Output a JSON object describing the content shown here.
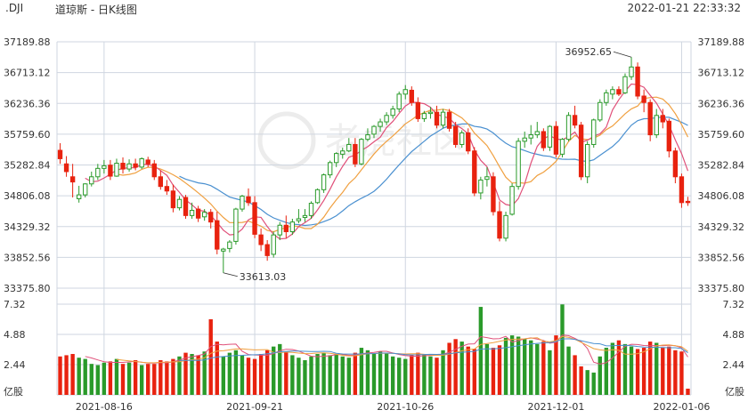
{
  "header": {
    "symbol": ".DJI",
    "title": "道琼斯 - 日K线图",
    "timestamp": "2022-01-21 22:33:32"
  },
  "watermark": {
    "text": "老虎社区",
    "icon": "tiger-logo-icon"
  },
  "colors": {
    "up": "#2a9a2a",
    "down": "#e8220f",
    "grid": "#cfd6e0",
    "ma5": "#e0507a",
    "ma10": "#f0a040",
    "ma20": "#4a90d0"
  },
  "chart_data": [
    {
      "type": "candlestick",
      "title": "",
      "y_ticks": [
        "37189.88",
        "36713.12",
        "36236.36",
        "35759.60",
        "35282.84",
        "34806.08",
        "34329.32",
        "33852.56",
        "33375.80"
      ],
      "ylim": [
        33375.8,
        37189.88
      ],
      "x_tick_labels": [
        "2021-08-16",
        "2021-09-21",
        "2021-10-26",
        "2021-12-01",
        "2022-01-06"
      ],
      "annotations": [
        {
          "text": "36952.65",
          "value": 36952.65,
          "kind": "high"
        },
        {
          "text": "33613.03",
          "value": 33613.03,
          "kind": "low"
        }
      ],
      "candles": [
        [
          35510,
          35620,
          35380,
          35300
        ],
        [
          35300,
          35420,
          35180,
          35100
        ],
        [
          35100,
          35300,
          35020,
          34780
        ],
        [
          34760,
          34960,
          34820,
          34700
        ],
        [
          34820,
          35000,
          34990,
          34780
        ],
        [
          34990,
          35180,
          35100,
          34950
        ],
        [
          35100,
          35300,
          35230,
          35050
        ],
        [
          35230,
          35360,
          35270,
          35150
        ],
        [
          35280,
          35360,
          35110,
          35050
        ],
        [
          35110,
          35380,
          35310,
          35100
        ],
        [
          35310,
          35400,
          35220,
          35150
        ],
        [
          35220,
          35370,
          35300,
          35180
        ],
        [
          35300,
          35380,
          35250,
          35200
        ],
        [
          35250,
          35400,
          35380,
          35220
        ],
        [
          35360,
          35410,
          35300,
          35250
        ],
        [
          35300,
          35360,
          35100,
          35050
        ],
        [
          35100,
          35200,
          34950,
          34900
        ],
        [
          34950,
          35050,
          34880,
          34820
        ],
        [
          34880,
          34980,
          34620,
          34550
        ],
        [
          34620,
          34800,
          34750,
          34580
        ],
        [
          34780,
          34820,
          34500,
          34450
        ],
        [
          34500,
          34700,
          34580,
          34450
        ],
        [
          34600,
          34650,
          34460,
          34400
        ],
        [
          34480,
          34600,
          34550,
          34420
        ],
        [
          34550,
          34600,
          34400,
          34300
        ],
        [
          34420,
          34560,
          33980,
          33900
        ],
        [
          33950,
          34000,
          33980,
          33613.03
        ],
        [
          33990,
          34120,
          34090,
          33930
        ],
        [
          34100,
          34620,
          34600,
          34050
        ],
        [
          34600,
          34820,
          34800,
          34560
        ],
        [
          34790,
          34920,
          34700,
          34650
        ],
        [
          34700,
          34800,
          34210,
          34150
        ],
        [
          34200,
          34300,
          34050,
          33950
        ],
        [
          34050,
          34120,
          33880,
          33800
        ],
        [
          33900,
          34250,
          34200,
          33850
        ],
        [
          34200,
          34400,
          34350,
          34120
        ],
        [
          34350,
          34500,
          34250,
          34150
        ],
        [
          34250,
          34450,
          34400,
          34200
        ],
        [
          34420,
          34600,
          34450,
          34380
        ],
        [
          34470,
          34600,
          34500,
          34400
        ],
        [
          34500,
          34720,
          34690,
          34450
        ],
        [
          34700,
          34920,
          34900,
          34680
        ],
        [
          34900,
          35150,
          35130,
          34850
        ],
        [
          35130,
          35350,
          35320,
          35080
        ],
        [
          35320,
          35480,
          35460,
          35250
        ],
        [
          35450,
          35550,
          35500,
          35380
        ],
        [
          35500,
          35700,
          35600,
          35480
        ],
        [
          35600,
          35700,
          35300,
          35250
        ],
        [
          35300,
          35700,
          35680,
          35280
        ],
        [
          35680,
          35850,
          35750,
          35650
        ],
        [
          35760,
          35900,
          35880,
          35700
        ],
        [
          35880,
          36000,
          35950,
          35800
        ],
        [
          35950,
          36100,
          36050,
          35900
        ],
        [
          36050,
          36200,
          36150,
          36000
        ],
        [
          36150,
          36420,
          36380,
          36100
        ],
        [
          36380,
          36520,
          36450,
          36300
        ],
        [
          36440,
          36500,
          36250,
          36200
        ],
        [
          36250,
          36330,
          36000,
          35950
        ],
        [
          36000,
          36120,
          36080,
          35950
        ],
        [
          36080,
          36180,
          36100,
          36000
        ],
        [
          36100,
          36200,
          35900,
          35850
        ],
        [
          35900,
          36150,
          36100,
          35850
        ],
        [
          36100,
          36150,
          35850,
          35800
        ],
        [
          35880,
          35950,
          35600,
          35550
        ],
        [
          35600,
          35820,
          35780,
          35550
        ],
        [
          35780,
          35850,
          35500,
          35450
        ],
        [
          35500,
          35560,
          34850,
          34800
        ],
        [
          34850,
          35100,
          35050,
          34750
        ],
        [
          35060,
          35250,
          35100,
          34950
        ],
        [
          35100,
          35170,
          34560,
          34500
        ],
        [
          34560,
          34720,
          34150,
          34100
        ],
        [
          34150,
          34560,
          34500,
          34100
        ],
        [
          34520,
          35000,
          34950,
          34500
        ],
        [
          34950,
          35700,
          35650,
          34900
        ],
        [
          35650,
          35800,
          35700,
          35550
        ],
        [
          35700,
          35900,
          35750,
          35600
        ],
        [
          35750,
          35950,
          35800,
          35700
        ],
        [
          35800,
          35850,
          35550,
          35500
        ],
        [
          35560,
          35900,
          35880,
          35500
        ],
        [
          35880,
          35960,
          35450,
          35400
        ],
        [
          35450,
          35700,
          35680,
          35400
        ],
        [
          35680,
          36100,
          36050,
          35650
        ],
        [
          36050,
          36200,
          35900,
          35850
        ],
        [
          35900,
          35950,
          35100,
          35050
        ],
        [
          35100,
          35650,
          35600,
          35000
        ],
        [
          35600,
          36000,
          35980,
          35550
        ],
        [
          35980,
          36300,
          36250,
          35950
        ],
        [
          36250,
          36450,
          36400,
          36200
        ],
        [
          36380,
          36500,
          36450,
          36300
        ],
        [
          36450,
          36500,
          36380,
          36350
        ],
        [
          36400,
          36700,
          36650,
          36380
        ],
        [
          36650,
          36952.65,
          36800,
          36600
        ],
        [
          36800,
          36870,
          36350,
          36300
        ],
        [
          36350,
          36450,
          36250,
          36100
        ],
        [
          36250,
          36300,
          35750,
          35650
        ],
        [
          35750,
          36150,
          36050,
          35700
        ],
        [
          36050,
          36150,
          35950,
          35850
        ],
        [
          35960,
          36000,
          35500,
          35400
        ],
        [
          35500,
          35550,
          35100,
          35000
        ],
        [
          35100,
          35150,
          34700,
          34620
        ],
        [
          34720,
          34790,
          34700,
          34650
        ]
      ]
    },
    {
      "type": "bar",
      "title": "",
      "unit": "亿股",
      "y_ticks": [
        "7.32",
        "4.88",
        "2.44"
      ],
      "ylim": [
        0,
        7.32
      ],
      "values": [
        3.1,
        3.2,
        3.3,
        3.0,
        2.9,
        2.5,
        2.4,
        2.6,
        2.7,
        2.9,
        2.5,
        2.6,
        2.8,
        2.4,
        2.5,
        2.5,
        2.8,
        2.7,
        2.9,
        3.1,
        3.4,
        3.3,
        3.2,
        3.5,
        6.1,
        4.3,
        3.1,
        3.4,
        3.6,
        3.2,
        3.0,
        2.9,
        3.3,
        3.6,
        3.9,
        4.1,
        3.5,
        3.2,
        3.0,
        2.8,
        3.1,
        3.3,
        3.4,
        3.2,
        3.3,
        3.1,
        3.0,
        3.4,
        3.8,
        3.6,
        3.3,
        3.5,
        3.4,
        3.1,
        3.0,
        2.9,
        3.2,
        3.4,
        3.3,
        3.1,
        3.0,
        3.6,
        4.2,
        4.5,
        4.3,
        3.9,
        3.7,
        7.1,
        4.1,
        3.8,
        4.0,
        4.6,
        4.8,
        4.7,
        4.5,
        4.4,
        4.1,
        4.3,
        3.6,
        4.8,
        7.3,
        3.9,
        3.2,
        2.3,
        2.0,
        1.8,
        3.1,
        3.8,
        4.2,
        4.4,
        4.1,
        3.9,
        3.7,
        3.8,
        4.3,
        4.2,
        3.8,
        3.9,
        3.6,
        3.5,
        0.5
      ]
    }
  ]
}
